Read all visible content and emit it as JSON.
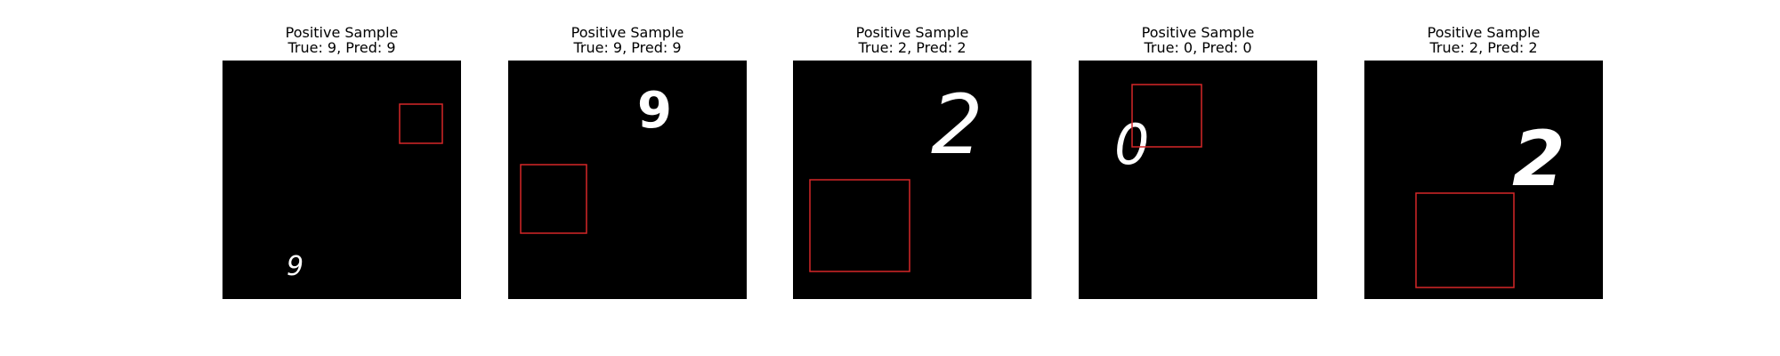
{
  "panels": [
    {
      "label": "Positive Sample",
      "true_label": "9",
      "predicted_label": "9",
      "summary": "True: 9, Pred: 9",
      "digit_glyph": "9"
    },
    {
      "label": "Positive Sample",
      "true_label": "9",
      "predicted_label": "9",
      "summary": "True: 9, Pred: 9",
      "digit_glyph": "9"
    },
    {
      "label": "Positive Sample",
      "true_label": "2",
      "predicted_label": "2",
      "summary": "True: 2, Pred: 2",
      "digit_glyph": "2"
    },
    {
      "label": "Positive Sample",
      "true_label": "0",
      "predicted_label": "0",
      "summary": "True: 0, Pred: 0",
      "digit_glyph": "0"
    },
    {
      "label": "Positive Sample",
      "true_label": "2",
      "predicted_label": "2",
      "summary": "True: 2, Pred: 2",
      "digit_glyph": "2"
    }
  ],
  "colors": {
    "background": "#000000",
    "digit": "#ffffff",
    "box": "#d62728",
    "text": "#000000"
  }
}
